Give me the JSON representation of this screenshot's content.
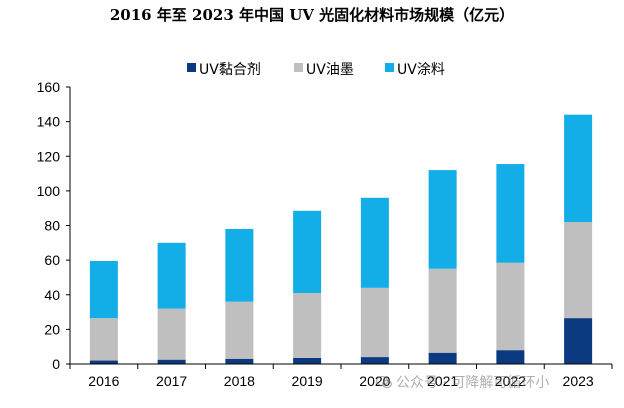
{
  "title": "2016 年至 2023 年中国 UV 光固化材料市场规模（亿元）",
  "watermark": "公众号 · 可降解可循环小",
  "colors": {
    "adhesive": "#0b3a80",
    "ink": "#bfbfbf",
    "coating": "#13aee8",
    "axis": "#000000"
  },
  "chart_data": {
    "type": "bar",
    "stacked": true,
    "categories": [
      "2016",
      "2017",
      "2018",
      "2019",
      "2020",
      "2021",
      "2022",
      "2023"
    ],
    "series": [
      {
        "name": "UV黏合剂",
        "values": [
          2,
          2.5,
          3,
          3.5,
          4,
          6.5,
          8,
          26.5
        ]
      },
      {
        "name": "UV油墨",
        "values": [
          24.5,
          29.5,
          33,
          37.5,
          40,
          48.5,
          50.5,
          55.5
        ]
      },
      {
        "name": "UV涂料",
        "values": [
          33,
          38,
          42,
          47.5,
          52,
          57,
          57,
          62
        ]
      }
    ],
    "ylim": [
      0,
      160
    ],
    "yticks": [
      0,
      20,
      40,
      60,
      80,
      100,
      120,
      140,
      160
    ],
    "grid": false,
    "legend": "top"
  }
}
